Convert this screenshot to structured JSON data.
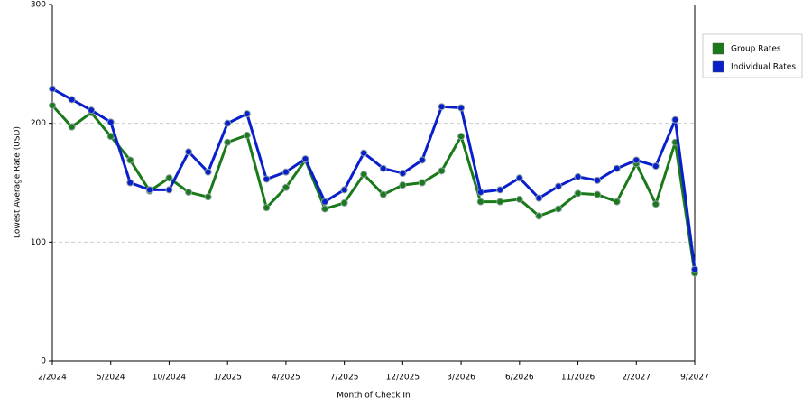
{
  "chart_data": {
    "type": "line",
    "x_label": "Month of Check In",
    "y_label": "Lowest Average Rate (USD)",
    "categories": [
      "2/2024",
      null,
      null,
      "5/2024",
      null,
      null,
      "10/2024",
      null,
      null,
      "1/2025",
      null,
      null,
      "4/2025",
      null,
      null,
      "7/2025",
      null,
      null,
      "12/2025",
      null,
      null,
      "3/2026",
      null,
      null,
      "6/2026",
      null,
      null,
      "11/2026",
      null,
      null,
      "2/2027",
      null,
      null,
      "9/2027"
    ],
    "series": [
      {
        "name": "Group Rates",
        "color": "#1a7a1a",
        "values": [
          215,
          197,
          209,
          189,
          169,
          143,
          154,
          142,
          138,
          184,
          190,
          129,
          146,
          169,
          128,
          133,
          157,
          140,
          148,
          150,
          160,
          189,
          134,
          134,
          136,
          122,
          128,
          141,
          140,
          134,
          166,
          132,
          184,
          74
        ]
      },
      {
        "name": "Individual Rates",
        "color": "#0a1fcc",
        "values": [
          229,
          220,
          211,
          201,
          150,
          144,
          144,
          176,
          159,
          200,
          208,
          153,
          159,
          170,
          134,
          144,
          175,
          162,
          158,
          169,
          214,
          213,
          142,
          144,
          154,
          137,
          147,
          155,
          152,
          162,
          169,
          164,
          203,
          77
        ]
      }
    ],
    "ylim": [
      0,
      300
    ],
    "yticks": [
      0,
      100,
      200,
      300
    ],
    "grid": true,
    "legend": "right"
  }
}
